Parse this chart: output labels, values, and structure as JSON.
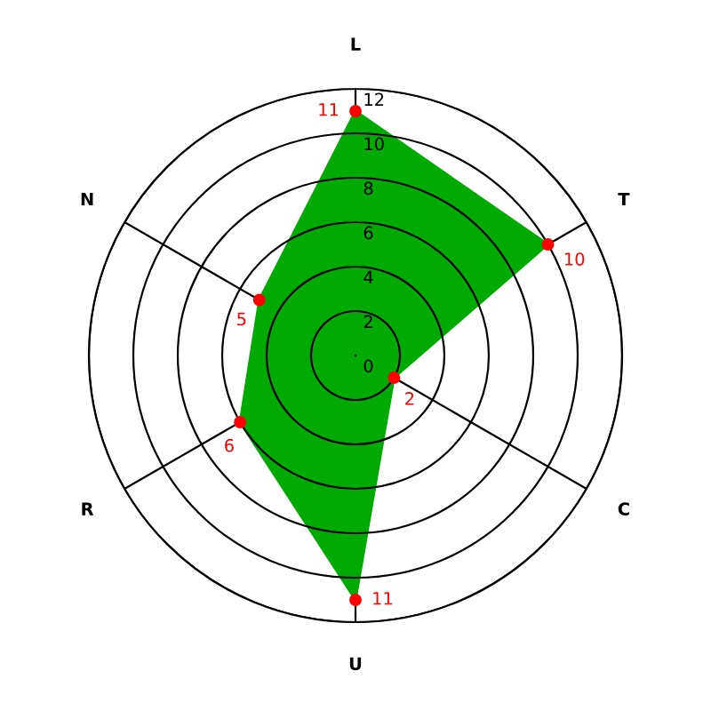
{
  "chart_data": {
    "type": "radar",
    "categories": [
      "L",
      "T",
      "C",
      "U",
      "R",
      "N"
    ],
    "series": [
      {
        "color": "#00aa00",
        "colors": [
          "#ff0000",
          "#ff0000",
          "#ff0000",
          "#ff0000",
          "#ff0000",
          "#ff0000"
        ],
        "values": [
          11,
          10,
          2,
          11,
          6,
          5
        ]
      }
    ],
    "ylim": [
      0,
      12
    ],
    "yticks": [
      0,
      2,
      4,
      6,
      8,
      10,
      12
    ],
    "grid": true,
    "marker": "circle",
    "data_labels": true
  }
}
